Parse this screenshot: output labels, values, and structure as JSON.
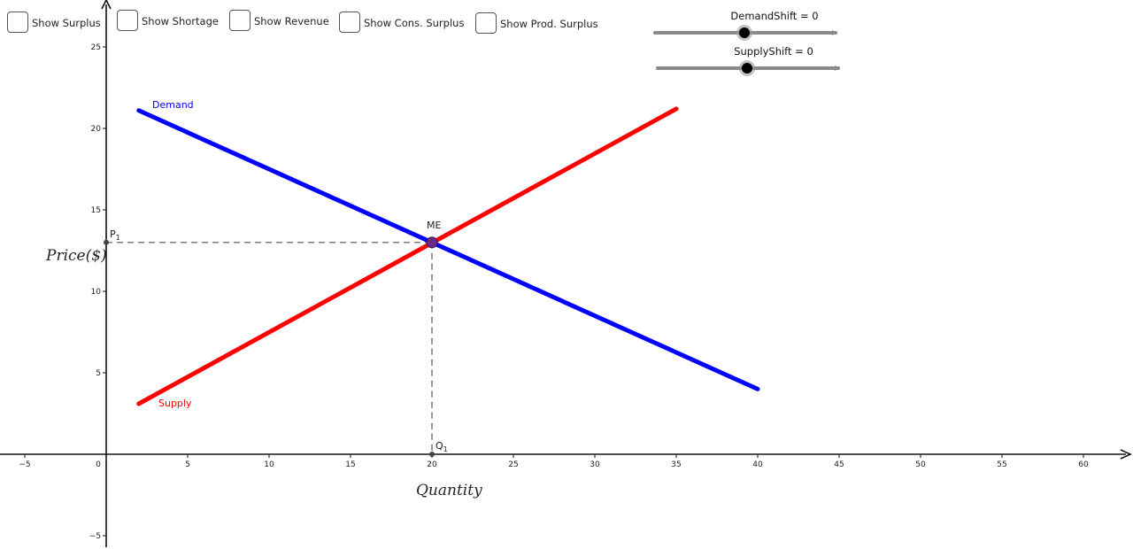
{
  "controls": {
    "checkboxes": [
      {
        "label": "Show Surplus",
        "checked": false
      },
      {
        "label": "Show Shortage",
        "checked": false
      },
      {
        "label": "Show Revenue",
        "checked": false
      },
      {
        "label": "Show Cons. Surplus",
        "checked": false
      },
      {
        "label": "Show Prod. Surplus",
        "checked": false
      }
    ],
    "sliders": [
      {
        "label": "DemandShift = 0",
        "value": 0
      },
      {
        "label": "SupplyShift = 0",
        "value": 0
      }
    ]
  },
  "chart_data": {
    "type": "line",
    "xlabel": "Quantity",
    "ylabel": "Price($)",
    "xlim": [
      -6.5,
      63
    ],
    "ylim": [
      -5.8,
      27.5
    ],
    "x_ticks": [
      -5,
      0,
      5,
      10,
      15,
      20,
      25,
      30,
      35,
      40,
      45,
      50,
      55,
      60
    ],
    "y_ticks": [
      -5,
      5,
      10,
      15,
      20,
      25
    ],
    "grid": false,
    "colors": {
      "demand": "#0000ff",
      "supply": "#ff0000",
      "equilibrium": "#6b2a8a"
    },
    "series": [
      {
        "name": "Demand",
        "points": [
          [
            2,
            21.1
          ],
          [
            40,
            4.0
          ]
        ]
      },
      {
        "name": "Supply",
        "points": [
          [
            2,
            3.1
          ],
          [
            35,
            21.2
          ]
        ]
      }
    ],
    "equilibrium": {
      "label": "ME",
      "x": 20,
      "y": 13
    },
    "price_label": {
      "main": "P",
      "sub": "1"
    },
    "quantity_label": {
      "main": "Q",
      "sub": "1"
    }
  }
}
